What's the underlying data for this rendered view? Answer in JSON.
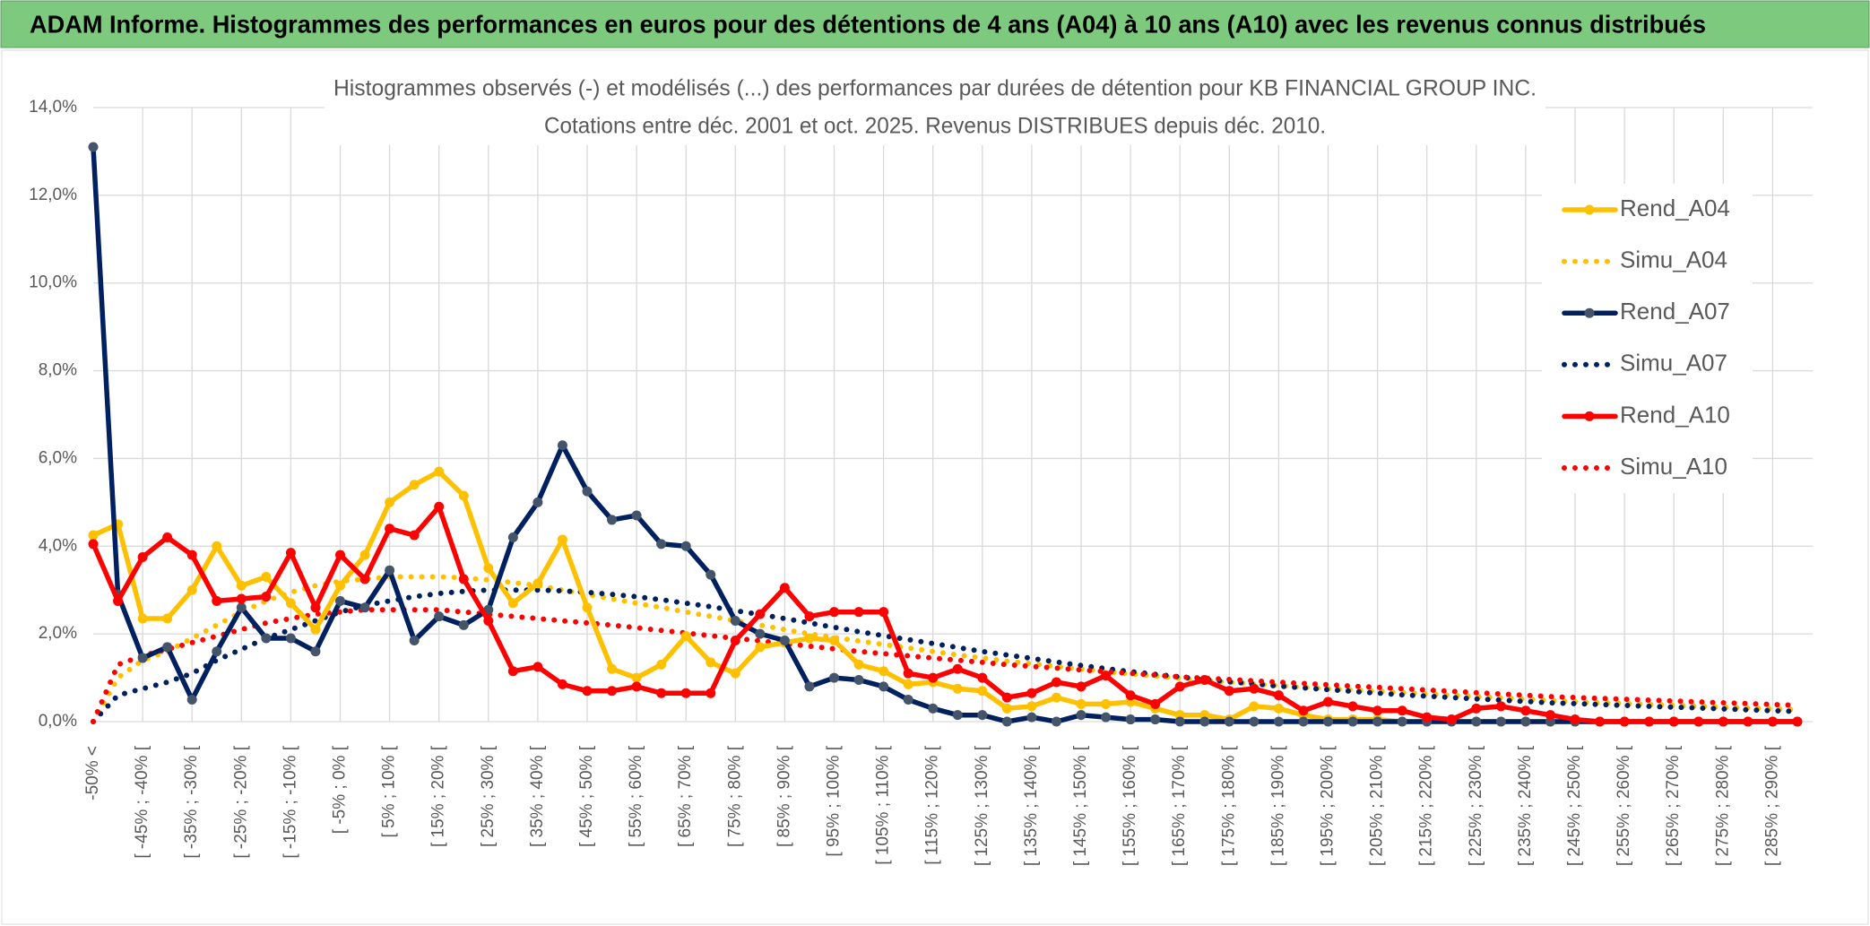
{
  "header": {
    "title": "ADAM Informe. Histogrammes des performances en euros pour des détentions de 4 ans (A04) à 10 ans (A10) avec les revenus connus distribués"
  },
  "chart_data": {
    "type": "line",
    "title": "Histogrammes observés (-) et modélisés (...) des performances par durées de détention pour KB FINANCIAL GROUP INC.",
    "subtitle": "Cotations entre déc. 2001 et oct. 2025. Revenus DISTRIBUES depuis déc. 2010.",
    "categories": [
      "-50% <",
      null,
      "[ -45% ; -40% [",
      null,
      "[ -35% ; -30% [",
      null,
      "[ -25% ; -20% [",
      null,
      "[ -15% ; -10% [",
      null,
      "[ -5% ; 0% [",
      null,
      "[ 5% ; 10% [",
      null,
      "[ 15% ; 20% [",
      null,
      "[ 25% ; 30% [",
      null,
      "[ 35% ; 40% [",
      null,
      "[ 45% ; 50% [",
      null,
      "[ 55% ; 60% [",
      null,
      "[ 65% ; 70% [",
      null,
      "[ 75% ; 80% [",
      null,
      "[ 85% ; 90% [",
      null,
      "[ 95% ; 100% [",
      null,
      "[ 105% ; 110% [",
      null,
      "[ 115% ; 120% [",
      null,
      "[ 125% ; 130% [",
      null,
      "[ 135% ; 140% [",
      null,
      "[ 145% ; 150% [",
      null,
      "[ 155% ; 160% [",
      null,
      "[ 165% ; 170% [",
      null,
      "[ 175% ; 180% [",
      null,
      "[ 185% ; 190% [",
      null,
      "[ 195% ; 200% [",
      null,
      "[ 205% ; 210% [",
      null,
      "[ 215% ; 220% [",
      null,
      "[ 225% ; 230% [",
      null,
      "[ 235% ; 240% [",
      null,
      "[ 245% ; 250% [",
      null,
      "[ 255% ; 260% [",
      null,
      "[ 265% ; 270% [",
      null,
      "[ 275% ; 280% [",
      null,
      "[ 285% ; 290% [",
      null
    ],
    "ylim": [
      0,
      14
    ],
    "yticks": [
      {
        "value": 0,
        "label": "0,0%"
      },
      {
        "value": 2,
        "label": "2,0%"
      },
      {
        "value": 4,
        "label": "4,0%"
      },
      {
        "value": 6,
        "label": "6,0%"
      },
      {
        "value": 8,
        "label": "8,0%"
      },
      {
        "value": 10,
        "label": "10,0%"
      },
      {
        "value": 12,
        "label": "12,0%"
      },
      {
        "value": 14,
        "label": "14,0%"
      }
    ],
    "grid": true,
    "legend": "right",
    "series": [
      {
        "name": "Rend_A04",
        "color": "#ffc000",
        "style": "solid",
        "marker_color": "#ffc000",
        "values": [
          4.25,
          4.5,
          2.35,
          2.35,
          3.0,
          4.0,
          3.1,
          3.3,
          2.7,
          2.1,
          3.1,
          3.8,
          5.0,
          5.4,
          5.7,
          5.15,
          3.5,
          2.7,
          3.15,
          4.15,
          2.6,
          1.2,
          1.0,
          1.3,
          1.95,
          1.35,
          1.1,
          1.7,
          1.8,
          1.9,
          1.85,
          1.3,
          1.15,
          0.85,
          0.9,
          0.75,
          0.7,
          0.3,
          0.35,
          0.55,
          0.4,
          0.4,
          0.45,
          0.3,
          0.15,
          0.15,
          0.05,
          0.35,
          0.3,
          0.15,
          0.05,
          0.05,
          0.05,
          0,
          0,
          0,
          0,
          0,
          0,
          0,
          0,
          0,
          0,
          0,
          0,
          0,
          0,
          0,
          0,
          0
        ]
      },
      {
        "name": "Simu_A04",
        "color": "#ffc000",
        "style": "dotted",
        "values": [
          0,
          1.0,
          1.4,
          1.6,
          1.9,
          2.2,
          2.5,
          2.75,
          2.95,
          3.1,
          3.2,
          3.25,
          3.3,
          3.3,
          3.3,
          3.28,
          3.23,
          3.17,
          3.1,
          3.0,
          2.9,
          2.8,
          2.7,
          2.6,
          2.5,
          2.4,
          2.3,
          2.2,
          2.1,
          2.0,
          1.92,
          1.84,
          1.76,
          1.68,
          1.6,
          1.52,
          1.45,
          1.38,
          1.32,
          1.26,
          1.2,
          1.14,
          1.09,
          1.04,
          0.99,
          0.94,
          0.9,
          0.86,
          0.82,
          0.78,
          0.75,
          0.72,
          0.69,
          0.66,
          0.63,
          0.6,
          0.57,
          0.54,
          0.51,
          0.48,
          0.45,
          0.43,
          0.41,
          0.39,
          0.37,
          0.35,
          0.33,
          0.31,
          0.29,
          0.27
        ]
      },
      {
        "name": "Rend_A07",
        "color": "#002060",
        "style": "solid",
        "marker_color": "#44546a",
        "values": [
          13.1,
          2.9,
          1.45,
          1.7,
          0.5,
          1.6,
          2.6,
          1.9,
          1.9,
          1.6,
          2.75,
          2.6,
          3.45,
          1.85,
          2.4,
          2.2,
          2.55,
          4.2,
          5.0,
          6.3,
          5.25,
          4.6,
          4.7,
          4.05,
          4.0,
          3.35,
          2.3,
          2.0,
          1.85,
          0.8,
          1.0,
          0.95,
          0.8,
          0.5,
          0.3,
          0.15,
          0.15,
          0,
          0.1,
          0,
          0.15,
          0.1,
          0.05,
          0.05,
          0,
          0,
          0,
          0,
          0,
          0,
          0,
          0,
          0,
          0,
          0,
          0,
          0,
          0,
          0,
          0,
          0,
          0,
          0,
          0,
          0,
          0,
          0,
          0,
          0,
          0
        ]
      },
      {
        "name": "Simu_A07",
        "color": "#002060",
        "style": "dotted",
        "values": [
          0,
          0.6,
          0.75,
          0.9,
          1.1,
          1.4,
          1.65,
          1.9,
          2.1,
          2.3,
          2.5,
          2.65,
          2.75,
          2.85,
          2.92,
          2.97,
          3.0,
          3.0,
          3.0,
          2.98,
          2.95,
          2.9,
          2.85,
          2.78,
          2.7,
          2.62,
          2.53,
          2.44,
          2.35,
          2.25,
          2.15,
          2.05,
          1.96,
          1.87,
          1.78,
          1.69,
          1.6,
          1.52,
          1.44,
          1.36,
          1.28,
          1.21,
          1.14,
          1.08,
          1.02,
          0.96,
          0.91,
          0.86,
          0.81,
          0.77,
          0.73,
          0.69,
          0.65,
          0.61,
          0.58,
          0.55,
          0.52,
          0.49,
          0.46,
          0.43,
          0.41,
          0.39,
          0.37,
          0.35,
          0.33,
          0.31,
          0.29,
          0.27,
          0.25,
          0.23
        ]
      },
      {
        "name": "Rend_A10",
        "color": "#ff0000",
        "style": "solid",
        "marker_color": "#ff0000",
        "values": [
          4.05,
          2.75,
          3.75,
          4.2,
          3.8,
          2.75,
          2.8,
          2.85,
          3.85,
          2.6,
          3.8,
          3.25,
          4.4,
          4.25,
          4.9,
          3.25,
          2.3,
          1.15,
          1.25,
          0.85,
          0.7,
          0.7,
          0.8,
          0.65,
          0.65,
          0.65,
          1.85,
          2.45,
          3.05,
          2.4,
          2.5,
          2.5,
          2.5,
          1.1,
          1.0,
          1.2,
          1.0,
          0.55,
          0.65,
          0.9,
          0.8,
          1.05,
          0.6,
          0.4,
          0.8,
          0.95,
          0.7,
          0.75,
          0.6,
          0.25,
          0.45,
          0.35,
          0.25,
          0.25,
          0.1,
          0.05,
          0.3,
          0.35,
          0.25,
          0.15,
          0.05,
          0,
          0,
          0,
          0,
          0,
          0,
          0,
          0,
          0
        ]
      },
      {
        "name": "Simu_A10",
        "color": "#ff0000",
        "style": "dotted",
        "values": [
          0,
          1.3,
          1.5,
          1.65,
          1.8,
          1.95,
          2.1,
          2.25,
          2.35,
          2.45,
          2.5,
          2.55,
          2.55,
          2.55,
          2.55,
          2.5,
          2.45,
          2.4,
          2.35,
          2.3,
          2.25,
          2.2,
          2.14,
          2.08,
          2.02,
          1.96,
          1.9,
          1.84,
          1.78,
          1.72,
          1.66,
          1.6,
          1.55,
          1.5,
          1.45,
          1.4,
          1.35,
          1.3,
          1.26,
          1.22,
          1.18,
          1.14,
          1.1,
          1.06,
          1.02,
          0.99,
          0.96,
          0.93,
          0.9,
          0.87,
          0.84,
          0.81,
          0.78,
          0.75,
          0.72,
          0.69,
          0.66,
          0.63,
          0.6,
          0.57,
          0.55,
          0.53,
          0.51,
          0.49,
          0.47,
          0.45,
          0.43,
          0.41,
          0.39,
          0.37
        ]
      }
    ]
  }
}
